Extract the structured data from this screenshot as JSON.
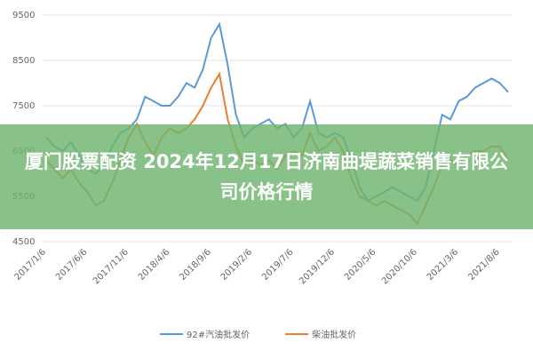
{
  "chart_data": {
    "type": "line",
    "title": "厦门股票配资 2024年12月17日济南曲堤蔬菜销售有限公司价格行情",
    "categories": [
      "2017/1/6",
      null,
      null,
      null,
      null,
      "2017/6/6",
      null,
      null,
      null,
      null,
      "2017/11/6",
      null,
      null,
      null,
      null,
      "2018/4/6",
      null,
      null,
      null,
      null,
      "2018/9/6",
      null,
      null,
      null,
      null,
      "2019/2/6",
      null,
      null,
      null,
      null,
      "2019/7/6",
      null,
      null,
      null,
      null,
      "2019/12/6",
      null,
      null,
      null,
      null,
      "2020/5/6",
      null,
      null,
      null,
      null,
      "2020/10/6",
      null,
      null,
      null,
      null,
      "2021/3/6",
      null,
      null,
      null,
      null,
      "2021/8/6",
      null
    ],
    "series": [
      {
        "name": "92#汽油批发价",
        "color": "#5b9bd5",
        "values": [
          6800,
          6600,
          6500,
          6700,
          6400,
          6100,
          6000,
          6200,
          6600,
          6900,
          7000,
          7200,
          7700,
          7600,
          7500,
          7500,
          7700,
          8000,
          7900,
          8300,
          9000,
          9300,
          8400,
          7300,
          6800,
          7000,
          7100,
          7200,
          7000,
          7100,
          6800,
          7000,
          7600,
          6900,
          6800,
          6900,
          6800,
          6300,
          5700,
          5400,
          5500,
          5600,
          5700,
          5600,
          5500,
          5400,
          5700,
          6500,
          7300,
          7200,
          7600,
          7700,
          7900,
          8000,
          8100,
          8000,
          7800
        ]
      },
      {
        "name": "柴油批发价",
        "color": "#ed7d31",
        "values": [
          6300,
          6100,
          5900,
          6100,
          5800,
          5600,
          5300,
          5400,
          5800,
          6300,
          6800,
          7100,
          6700,
          6400,
          6800,
          7000,
          6900,
          7000,
          7200,
          7500,
          7900,
          8200,
          7200,
          6600,
          6200,
          6300,
          6200,
          6300,
          6100,
          6400,
          6500,
          6400,
          6900,
          6500,
          6600,
          6800,
          6500,
          5900,
          5500,
          5400,
          5300,
          5400,
          5300,
          5200,
          5100,
          4900,
          5300,
          5700,
          6200,
          6300,
          6200,
          6400,
          6500,
          6500,
          6600,
          6600,
          6300
        ]
      }
    ],
    "ylim": [
      4500,
      9500
    ],
    "yticks": [
      4500,
      5500,
      6500,
      7500,
      8500,
      9500
    ],
    "grid": true,
    "legend": "bottom"
  }
}
